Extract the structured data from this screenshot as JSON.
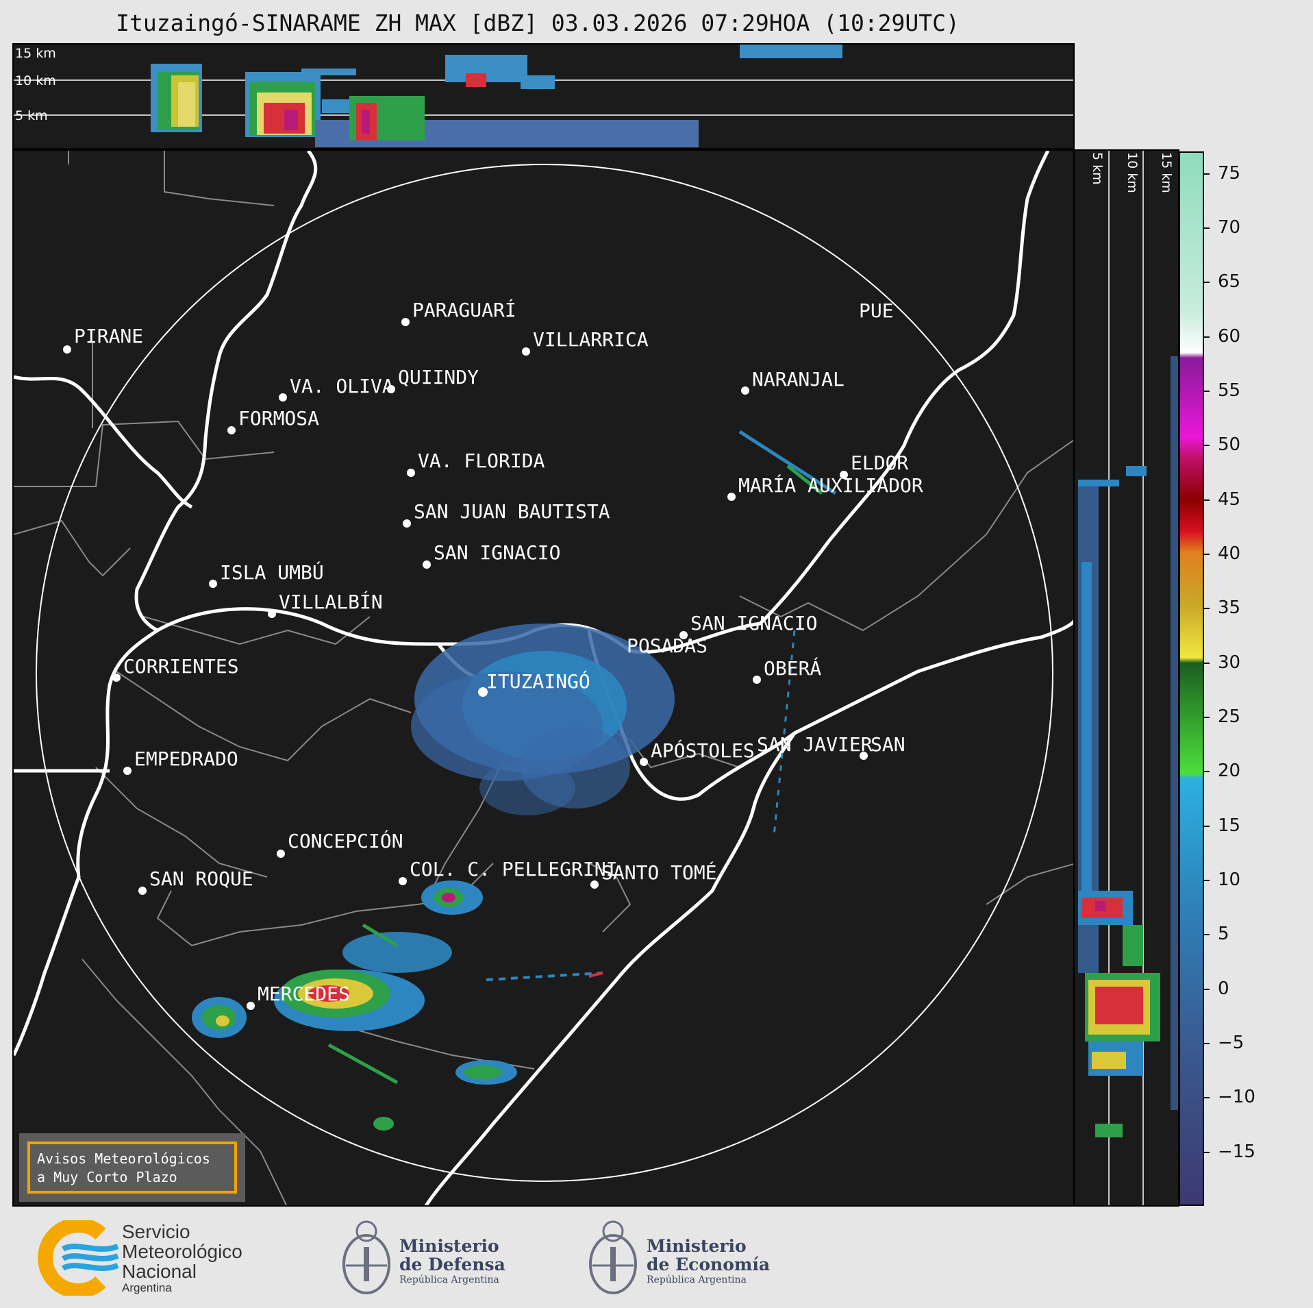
{
  "title": "Ituzaingó-SINARAME ZH MAX [dBZ] 03.03.2026 07:29HOA (10:29UTC)",
  "top_panel": {
    "height_labels": [
      "15 km",
      "10 km",
      "5 km"
    ]
  },
  "side_panel": {
    "height_labels": [
      "5 km",
      "10 km",
      "15 km"
    ]
  },
  "colorbar": {
    "ticks": [
      "75",
      "70",
      "65",
      "60",
      "55",
      "50",
      "45",
      "40",
      "35",
      "30",
      "25",
      "20",
      "15",
      "10",
      "5",
      "0",
      "−5",
      "−10",
      "−15"
    ],
    "range": [
      -20,
      77
    ]
  },
  "map": {
    "cities": [
      {
        "name": "PIRANE"
      },
      {
        "name": "PARAGUARÍ"
      },
      {
        "name": "VILLARRICA"
      },
      {
        "name": "QUIINDY"
      },
      {
        "name": "VA. OLIVA"
      },
      {
        "name": "NARANJAL"
      },
      {
        "name": "FORMOSA"
      },
      {
        "name": "VA. FLORIDA"
      },
      {
        "name": "ELDOR"
      },
      {
        "name": "MARÍA AUXILIADOR"
      },
      {
        "name": "SAN JUAN BAUTISTA"
      },
      {
        "name": "SAN IGNACIO"
      },
      {
        "name": "ISLA UMBÚ"
      },
      {
        "name": "VILLALBÍN"
      },
      {
        "name": "SAN IGNACIO"
      },
      {
        "name": "POSADAS"
      },
      {
        "name": "CORRIENTES"
      },
      {
        "name": "ITUZAINGÓ"
      },
      {
        "name": "OBERÁ"
      },
      {
        "name": "EMPEDRADO"
      },
      {
        "name": "APÓSTOLES"
      },
      {
        "name": "SAN JAVIER"
      },
      {
        "name": "SAN"
      },
      {
        "name": "CONCEPCIÓN"
      },
      {
        "name": "COL. C. PELLEGRINI"
      },
      {
        "name": "SANTO TOMÉ"
      },
      {
        "name": "SAN ROQUE"
      },
      {
        "name": "MERCEDES"
      },
      {
        "name": "PUE"
      }
    ],
    "notice": {
      "line1": "Avisos Meteorológicos",
      "line2": "a Muy Corto Plazo"
    }
  },
  "footer": {
    "smn": {
      "line1": "Servicio",
      "line2": "Meteorológico",
      "line3": "Nacional",
      "line4": "Argentina"
    },
    "defensa": {
      "line1": "Ministerio",
      "line2": "de Defensa",
      "line3": "República Argentina"
    },
    "economia": {
      "line1": "Ministerio",
      "line2": "de Economía",
      "line3": "República Argentina"
    }
  },
  "colors": {
    "background": "#1b1b1b",
    "borders": "#ffffff",
    "smn_yellow": "#f5a800",
    "smn_blue": "#29a3dd",
    "notice_border": "#f5a100"
  }
}
